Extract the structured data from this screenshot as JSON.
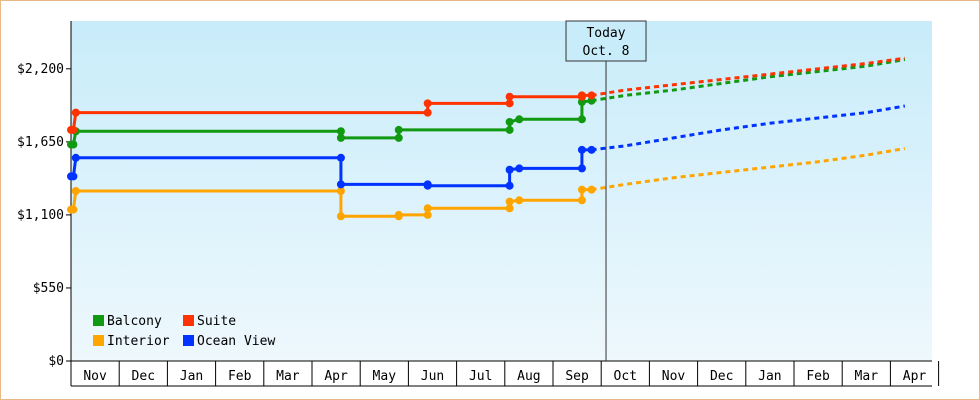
{
  "chart_data": {
    "type": "line",
    "title": "",
    "xlabel": "",
    "ylabel": "",
    "ylim": [
      0,
      2560
    ],
    "y_ticks": [
      {
        "value": 0,
        "label": "$0"
      },
      {
        "value": 550,
        "label": "$550"
      },
      {
        "value": 1100,
        "label": "$1,100"
      },
      {
        "value": 1650,
        "label": "$1,650"
      },
      {
        "value": 2200,
        "label": "$2,200"
      }
    ],
    "months": [
      "Nov",
      "Dec",
      "Jan",
      "Feb",
      "Mar",
      "Apr",
      "May",
      "Jun",
      "Jul",
      "Aug",
      "Sep",
      "Oct",
      "Nov",
      "Dec",
      "Jan",
      "Feb",
      "Mar",
      "Apr"
    ],
    "today": {
      "line1": "Today",
      "line2": "Oct. 8",
      "x": 11.1
    },
    "grid": false,
    "legend_position": "bottom-left",
    "series": [
      {
        "name": "Balcony",
        "color": "#119911",
        "points": [
          [
            0,
            1630
          ],
          [
            0.05,
            1630
          ],
          [
            0.1,
            1730
          ],
          [
            5.6,
            1730
          ],
          [
            5.6,
            1680
          ],
          [
            6.8,
            1680
          ],
          [
            6.8,
            1740
          ],
          [
            7.4,
            1740
          ],
          [
            9.1,
            1740
          ],
          [
            9.1,
            1800
          ],
          [
            9.3,
            1820
          ],
          [
            10.6,
            1820
          ],
          [
            10.6,
            1950
          ],
          [
            10.8,
            1960
          ]
        ],
        "forecast": [
          [
            10.8,
            1960
          ],
          [
            11.5,
            2000
          ],
          [
            12.5,
            2040
          ],
          [
            13.5,
            2090
          ],
          [
            14.5,
            2140
          ],
          [
            15.5,
            2180
          ],
          [
            16.5,
            2220
          ],
          [
            17.3,
            2270
          ]
        ]
      },
      {
        "name": "Suite",
        "color": "#ff3300",
        "points": [
          [
            0,
            1740
          ],
          [
            0.05,
            1740
          ],
          [
            0.1,
            1870
          ],
          [
            5.6,
            1870
          ],
          [
            6.8,
            1870
          ],
          [
            7.4,
            1870
          ],
          [
            7.4,
            1940
          ],
          [
            9.1,
            1940
          ],
          [
            9.1,
            1990
          ],
          [
            10.6,
            1990
          ],
          [
            10.6,
            2000
          ],
          [
            10.8,
            2000
          ]
        ],
        "forecast": [
          [
            10.8,
            2000
          ],
          [
            11.5,
            2040
          ],
          [
            12.5,
            2080
          ],
          [
            13.5,
            2120
          ],
          [
            14.5,
            2160
          ],
          [
            15.5,
            2200
          ],
          [
            16.5,
            2240
          ],
          [
            17.3,
            2280
          ]
        ]
      },
      {
        "name": "Interior",
        "color": "#ffa500",
        "points": [
          [
            0,
            1140
          ],
          [
            0.05,
            1140
          ],
          [
            0.1,
            1280
          ],
          [
            5.6,
            1280
          ],
          [
            5.6,
            1090
          ],
          [
            6.8,
            1090
          ],
          [
            6.8,
            1100
          ],
          [
            7.4,
            1100
          ],
          [
            7.4,
            1150
          ],
          [
            9.1,
            1150
          ],
          [
            9.1,
            1200
          ],
          [
            9.3,
            1210
          ],
          [
            10.6,
            1210
          ],
          [
            10.6,
            1290
          ],
          [
            10.8,
            1290
          ]
        ],
        "forecast": [
          [
            10.8,
            1290
          ],
          [
            11.5,
            1330
          ],
          [
            12.5,
            1380
          ],
          [
            13.5,
            1420
          ],
          [
            14.5,
            1460
          ],
          [
            15.5,
            1500
          ],
          [
            16.5,
            1550
          ],
          [
            17.3,
            1600
          ]
        ]
      },
      {
        "name": "Ocean View",
        "color": "#0033ff",
        "points": [
          [
            0,
            1390
          ],
          [
            0.05,
            1390
          ],
          [
            0.1,
            1530
          ],
          [
            5.6,
            1530
          ],
          [
            5.6,
            1330
          ],
          [
            6.8,
            1330
          ],
          [
            7.4,
            1330
          ],
          [
            7.4,
            1320
          ],
          [
            9.1,
            1320
          ],
          [
            9.1,
            1440
          ],
          [
            9.3,
            1450
          ],
          [
            10.6,
            1450
          ],
          [
            10.6,
            1590
          ],
          [
            10.8,
            1590
          ]
        ],
        "forecast": [
          [
            10.8,
            1590
          ],
          [
            11.5,
            1620
          ],
          [
            12.5,
            1680
          ],
          [
            13.5,
            1740
          ],
          [
            14.5,
            1790
          ],
          [
            15.5,
            1830
          ],
          [
            16.5,
            1870
          ],
          [
            17.3,
            1920
          ]
        ]
      }
    ]
  }
}
